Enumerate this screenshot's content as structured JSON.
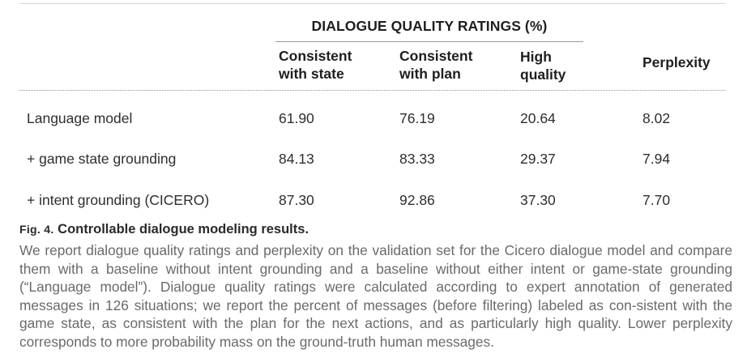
{
  "table": {
    "group_header": "DIALOGUE QUALITY RATINGS (%)",
    "columns": [
      {
        "line1": "Consistent",
        "line2": "with state"
      },
      {
        "line1": "Consistent",
        "line2": "with plan"
      },
      {
        "line1": "High",
        "line2": "quality"
      },
      {
        "line1": "Perplexity",
        "line2": ""
      }
    ],
    "rows": [
      {
        "label": "Language model",
        "values": [
          "61.90",
          "76.19",
          "20.64",
          "8.02"
        ]
      },
      {
        "label": "+ game state grounding",
        "values": [
          "84.13",
          "83.33",
          "29.37",
          "7.94"
        ]
      },
      {
        "label": "+ intent grounding (CICERO)",
        "values": [
          "87.30",
          "92.86",
          "37.30",
          "7.70"
        ]
      }
    ]
  },
  "caption": {
    "fig_label": "Fig. 4.",
    "title": "Controllable dialogue modeling results.",
    "body": "We report dialogue quality ratings and perplexity on the validation set for the Cicero dialogue model and compare them with a baseline without intent grounding and a baseline without either intent or game-state grounding (“Language model”). Dialogue quality ratings were calculated according to expert annotation of generated messages in 126 situations; we report the percent of messages (before filtering) labeled as con-sistent with the game state, as consistent with the plan for the next actions, and as particularly high quality. Lower perplexity corresponds to more probability mass on the ground-truth human messages."
  }
}
